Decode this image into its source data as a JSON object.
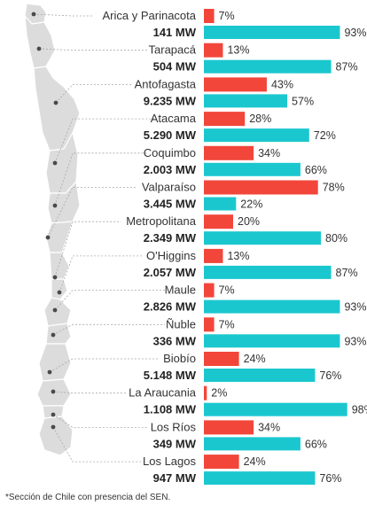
{
  "chart_data": {
    "type": "bar",
    "orientation": "horizontal",
    "categories": [
      {
        "name": "Arica y Parinacota",
        "capacity": "141 MW"
      },
      {
        "name": "Tarapacá",
        "capacity": "504 MW"
      },
      {
        "name": "Antofagasta",
        "capacity": "9.235 MW"
      },
      {
        "name": "Atacama",
        "capacity": "5.290 MW"
      },
      {
        "name": "Coquimbo",
        "capacity": "2.003 MW"
      },
      {
        "name": "Valparaíso",
        "capacity": "3.445 MW"
      },
      {
        "name": "Metropolitana",
        "capacity": "2.349 MW"
      },
      {
        "name": "O'Higgins",
        "capacity": "2.057 MW"
      },
      {
        "name": "Maule",
        "capacity": "2.826 MW"
      },
      {
        "name": "Ñuble",
        "capacity": "336 MW"
      },
      {
        "name": "Biobío",
        "capacity": "5.148 MW"
      },
      {
        "name": "La Araucania",
        "capacity": "1.108 MW"
      },
      {
        "name": "Los Ríos",
        "capacity": "349 MW"
      },
      {
        "name": "Los Lagos",
        "capacity": "947 MW"
      }
    ],
    "series": [
      {
        "color": "#f2463a",
        "values": [
          7,
          13,
          43,
          28,
          34,
          78,
          20,
          13,
          7,
          7,
          24,
          2,
          34,
          24
        ]
      },
      {
        "color": "#1bc7cf",
        "values": [
          93,
          87,
          57,
          72,
          66,
          22,
          80,
          87,
          93,
          93,
          76,
          98,
          66,
          76
        ]
      }
    ],
    "unit": "%",
    "xlim": [
      0,
      100
    ],
    "grid": false,
    "legend": "none"
  },
  "map": {
    "fill": "#dcdcdc",
    "stroke": "#ffffff",
    "marker_color": "#4a4a4a",
    "leader_color": "#a8a8a8"
  },
  "footnote": "*Sección de Chile con presencia del SEN."
}
